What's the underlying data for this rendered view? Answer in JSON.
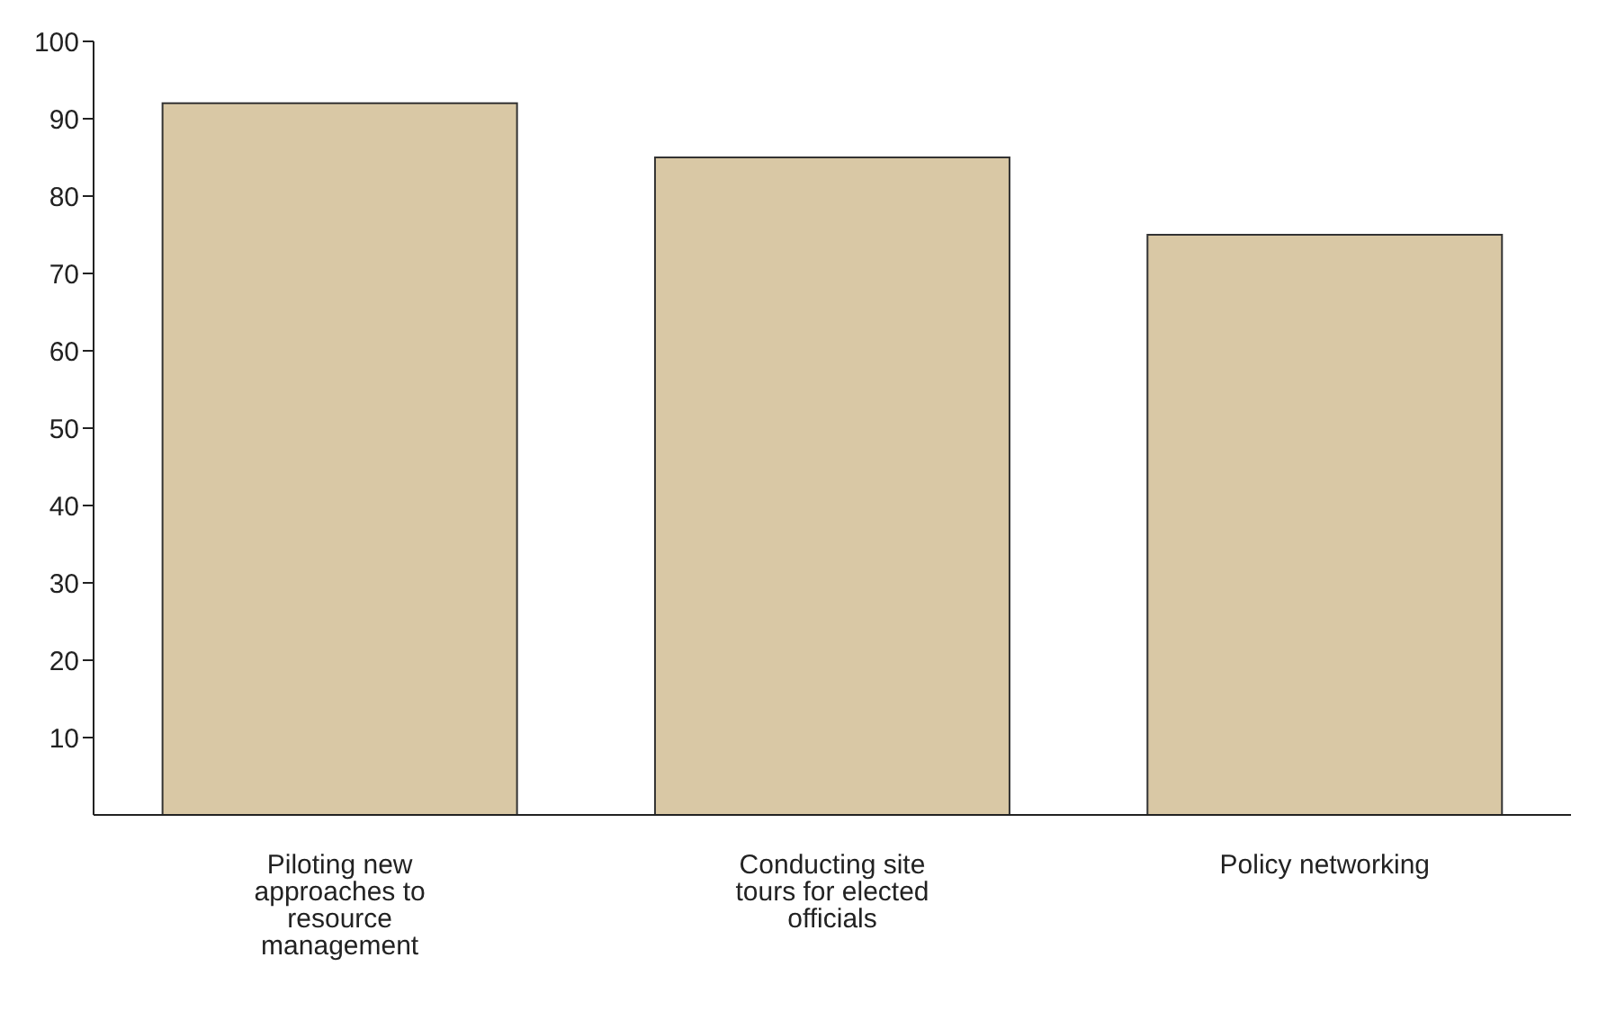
{
  "chart_data": {
    "type": "bar",
    "categories": [
      "Piloting new approaches to resource management",
      "Conducting site tours for elected officials",
      "Policy networking"
    ],
    "values": [
      92,
      85,
      75
    ],
    "color": "#d9c8a5",
    "ylim": [
      0,
      100
    ],
    "yticks": [
      10,
      20,
      30,
      40,
      50,
      60,
      70,
      80,
      90,
      100
    ],
    "grid": false
  }
}
